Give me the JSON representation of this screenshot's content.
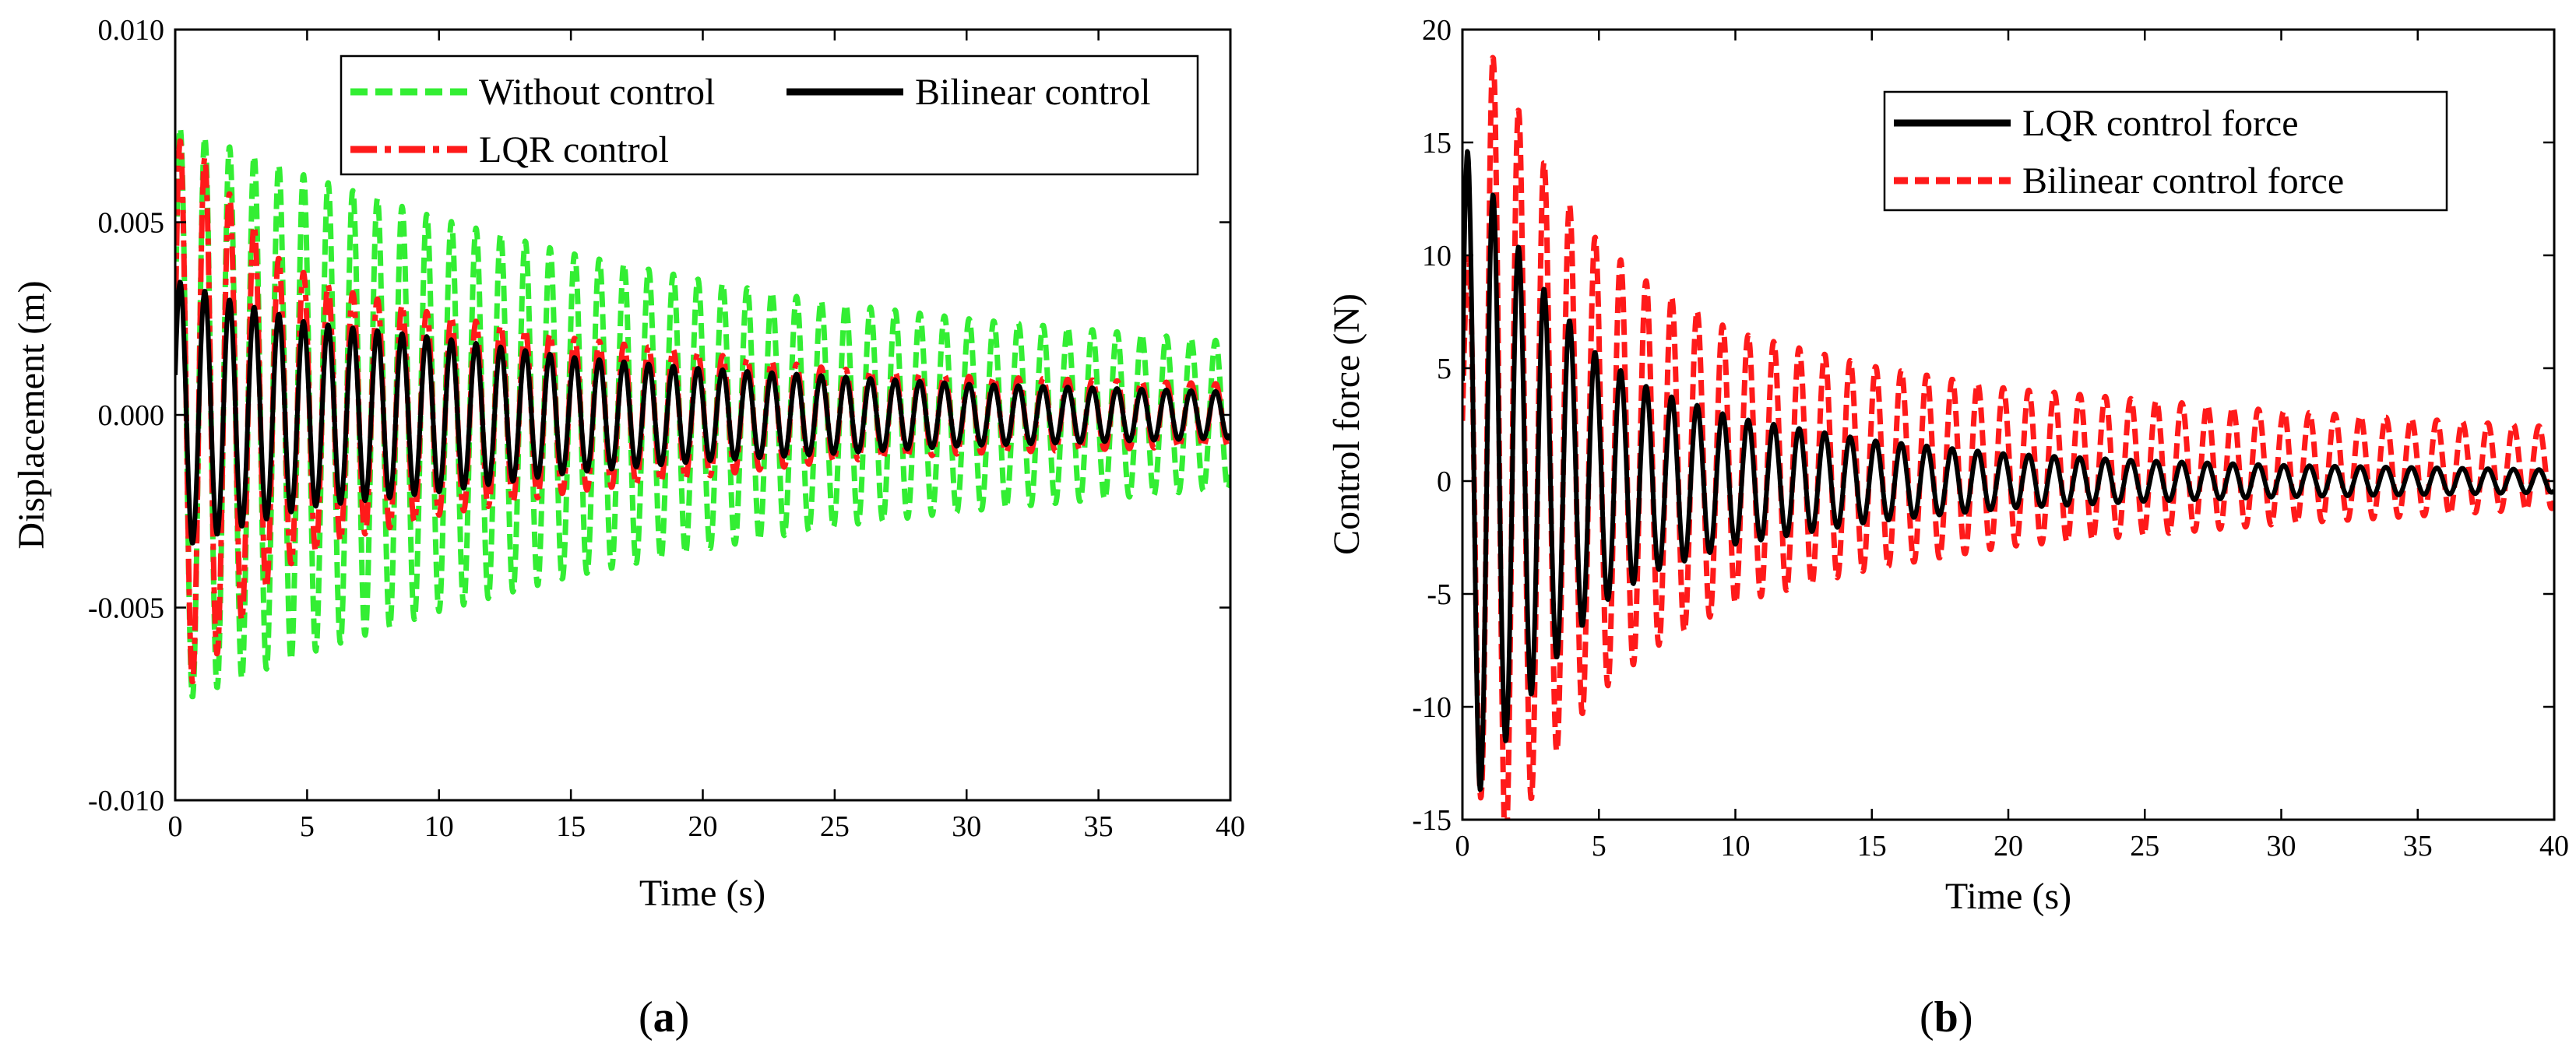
{
  "chart_data": [
    {
      "type": "line",
      "panel_label": "a",
      "xlabel": "Time (s)",
      "ylabel": "Displacement (m)",
      "xlim": [
        0,
        40
      ],
      "ylim": [
        -0.01,
        0.01
      ],
      "xticks": [
        0,
        5,
        10,
        15,
        20,
        25,
        30,
        35,
        40
      ],
      "yticks": [
        -0.01,
        -0.005,
        0.0,
        0.005,
        0.01
      ],
      "ytick_labels": [
        "-0.010",
        "-0.005",
        "0.000",
        "0.005",
        "0.010"
      ],
      "legend_position": "top-right",
      "series": [
        {
          "name": "Without control",
          "color": "#33ee33",
          "dash": "dashed",
          "envelope_t": [
            0,
            5,
            10,
            15,
            20,
            25,
            30,
            35,
            40
          ],
          "envelope_amplitude": [
            0.0075,
            0.0062,
            0.0051,
            0.0042,
            0.0035,
            0.0029,
            0.0025,
            0.0022,
            0.0019
          ],
          "frequency_hz": 1.0,
          "phase_drift": true
        },
        {
          "name": "LQR control",
          "color": "#ff1a1a",
          "dash": "dashdot",
          "envelope_t": [
            0,
            1,
            2,
            4,
            6,
            10,
            15,
            20,
            25,
            30,
            40
          ],
          "envelope_amplitude": [
            0.0072,
            0.0068,
            0.0058,
            0.004,
            0.0033,
            0.0026,
            0.002,
            0.0016,
            0.0012,
            0.001,
            0.0008
          ],
          "frequency_hz": 1.0
        },
        {
          "name": "Bilinear control",
          "color": "#000000",
          "dash": "solid",
          "envelope_t": [
            0,
            2,
            5,
            10,
            15,
            20,
            25,
            30,
            40
          ],
          "envelope_amplitude": [
            0.0035,
            0.003,
            0.0024,
            0.002,
            0.0015,
            0.0012,
            0.001,
            0.0008,
            0.0006
          ],
          "frequency_hz": 1.0
        }
      ]
    },
    {
      "type": "line",
      "panel_label": "b",
      "xlabel": "Time (s)",
      "ylabel": "Control force (N)",
      "xlim": [
        0,
        40
      ],
      "ylim": [
        -15,
        20
      ],
      "xticks": [
        0,
        5,
        10,
        15,
        20,
        25,
        30,
        35,
        40
      ],
      "yticks": [
        -15,
        -10,
        -5,
        0,
        5,
        10,
        15,
        20
      ],
      "ytick_labels": [
        "-15",
        "-10",
        "-5",
        "0",
        "5",
        "10",
        "15",
        "20"
      ],
      "legend_position": "top-right",
      "series": [
        {
          "name": "LQR control force",
          "color": "#000000",
          "dash": "solid",
          "envelope_t": [
            0,
            1,
            2,
            3,
            4,
            5,
            7,
            10,
            15,
            20,
            25,
            30,
            40
          ],
          "envelope_amplitude": [
            15,
            13,
            10.5,
            8.5,
            7,
            5.5,
            4,
            2.8,
            1.8,
            1.2,
            0.9,
            0.7,
            0.5
          ],
          "frequency_hz": 1.0
        },
        {
          "name": "Bilinear control force",
          "color": "#ff1a1a",
          "dash": "dashed",
          "envelope_t": [
            0,
            1,
            2,
            3,
            4,
            5,
            7,
            10,
            15,
            20,
            25,
            30,
            40
          ],
          "envelope_amplitude": [
            7,
            18.5,
            16,
            13.5,
            11.5,
            10,
            8,
            6,
            4.5,
            3.5,
            3,
            2.5,
            1.8
          ],
          "offset": 0.6,
          "frequency_hz": 1.0
        }
      ]
    }
  ]
}
